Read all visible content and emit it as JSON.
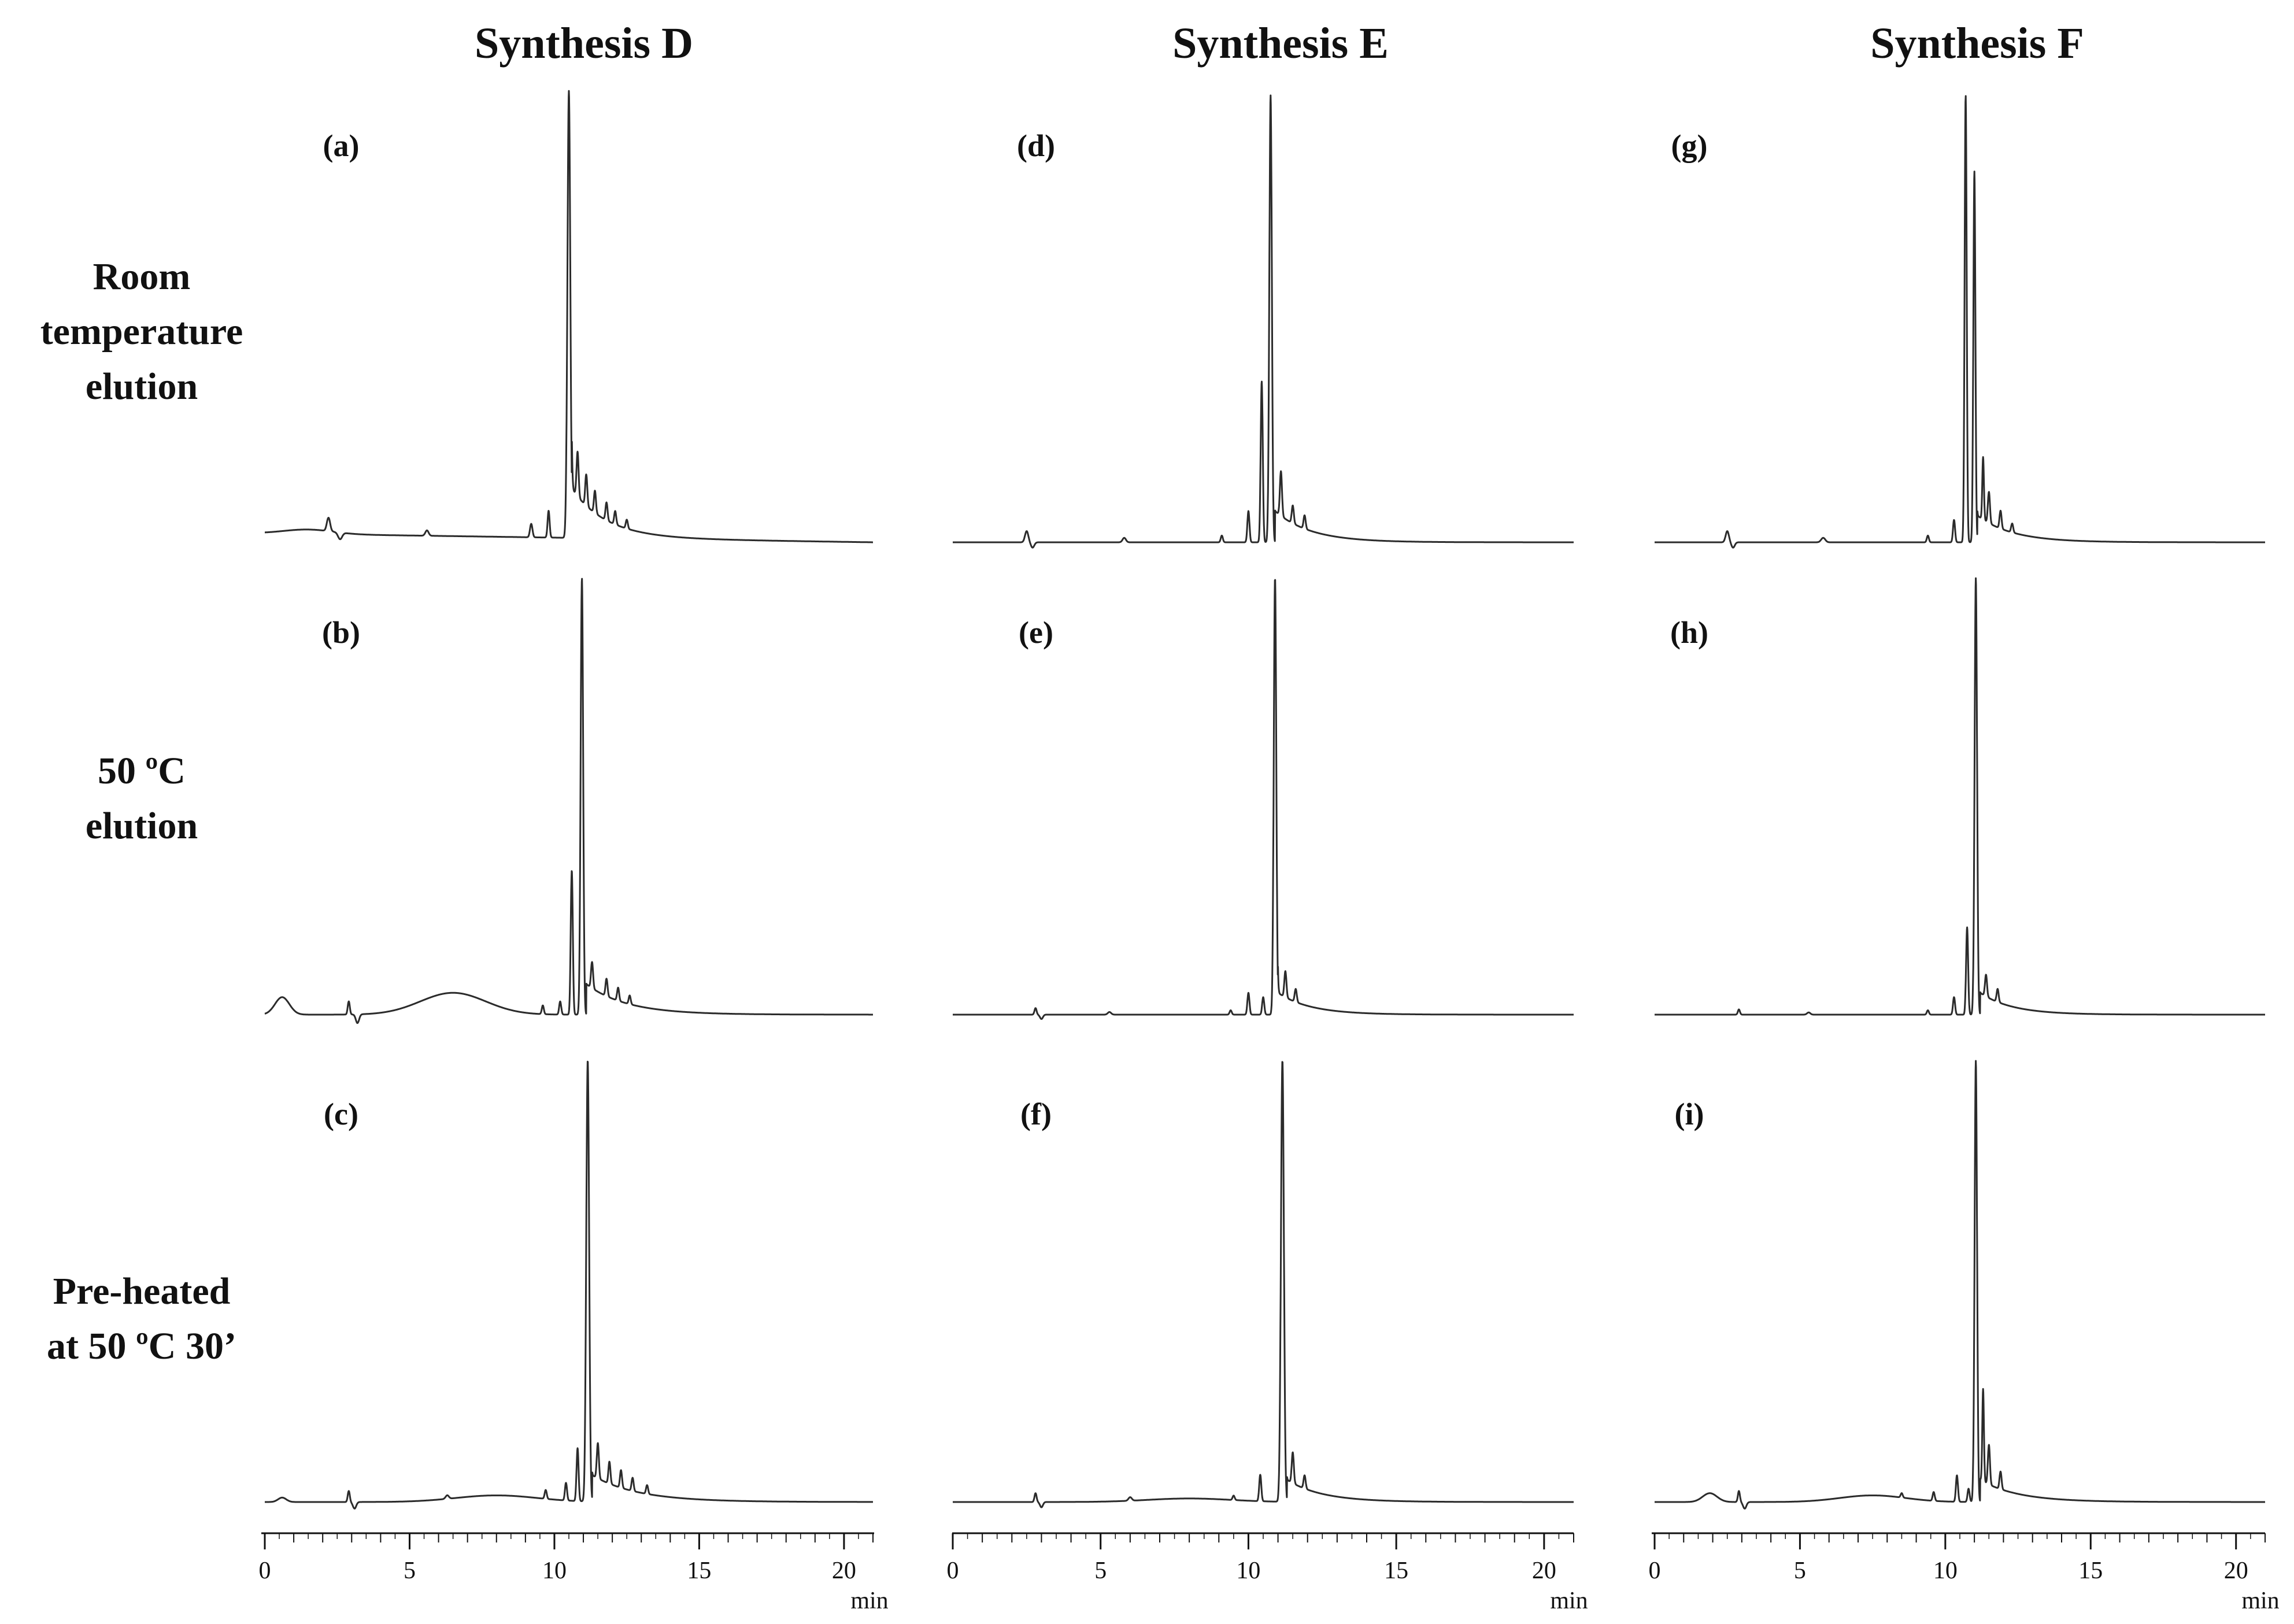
{
  "figure": {
    "column_titles": [
      "Synthesis D",
      "Synthesis E",
      "Synthesis F"
    ],
    "row_labels": [
      [
        "Room",
        "temperature",
        "elution"
      ],
      [
        "50 ºC",
        "elution"
      ],
      [
        "Pre-heated",
        "at 50 ºC 30’"
      ]
    ],
    "axis": {
      "tick_labels": [
        "0",
        "5",
        "10",
        "15",
        "20"
      ],
      "unit": "min"
    }
  },
  "colors": {
    "trace": "#2b2b2b",
    "axis": "#111111",
    "text": "#111111"
  },
  "chart_data": [
    {
      "type": "line",
      "panel_label": "(a)",
      "column": "Synthesis D",
      "row": "Room temperature elution",
      "xlim": [
        0,
        21
      ],
      "xlabel": "min",
      "baseline": 0.02,
      "baseline_end": 0.0,
      "drift": 0.0,
      "humps": [
        {
          "x": 1.5,
          "h": 0.01,
          "w": 1.2
        }
      ],
      "peaks": [
        {
          "x": 2.2,
          "h": 0.03,
          "w": 0.08
        },
        {
          "x": 2.6,
          "h": -0.015,
          "w": 0.1
        },
        {
          "x": 5.6,
          "h": 0.012,
          "w": 0.08
        },
        {
          "x": 9.2,
          "h": 0.03,
          "w": 0.06
        },
        {
          "x": 9.8,
          "h": 0.06,
          "w": 0.05
        },
        {
          "x": 10.5,
          "h": 1.0,
          "w": 0.07
        },
        {
          "x": 10.8,
          "h": 0.1,
          "w": 0.05
        },
        {
          "x": 11.1,
          "h": 0.07,
          "w": 0.05
        },
        {
          "x": 11.4,
          "h": 0.05,
          "w": 0.05
        },
        {
          "x": 11.8,
          "h": 0.04,
          "w": 0.05
        },
        {
          "x": 12.1,
          "h": 0.03,
          "w": 0.05
        },
        {
          "x": 12.5,
          "h": 0.02,
          "w": 0.05
        }
      ],
      "tail": {
        "x0": 10.6,
        "h": 0.11,
        "decay": 1.2
      }
    },
    {
      "type": "line",
      "panel_label": "(b)",
      "column": "Synthesis D",
      "row": "50 ºC elution",
      "xlim": [
        0,
        21
      ],
      "xlabel": "min",
      "baseline": 0.0,
      "baseline_end": 0.0,
      "drift": 0.0,
      "humps": [
        {
          "x": 0.6,
          "h": 0.04,
          "w": 0.35
        },
        {
          "x": 6.5,
          "h": 0.05,
          "w": 1.6
        }
      ],
      "peaks": [
        {
          "x": 2.9,
          "h": 0.03,
          "w": 0.05
        },
        {
          "x": 3.2,
          "h": -0.02,
          "w": 0.08
        },
        {
          "x": 9.6,
          "h": 0.02,
          "w": 0.05
        },
        {
          "x": 10.2,
          "h": 0.03,
          "w": 0.05
        },
        {
          "x": 10.6,
          "h": 0.33,
          "w": 0.05
        },
        {
          "x": 10.95,
          "h": 1.0,
          "w": 0.06
        },
        {
          "x": 11.3,
          "h": 0.06,
          "w": 0.05
        },
        {
          "x": 11.8,
          "h": 0.04,
          "w": 0.05
        },
        {
          "x": 12.2,
          "h": 0.03,
          "w": 0.05
        },
        {
          "x": 12.6,
          "h": 0.02,
          "w": 0.05
        }
      ],
      "tail": {
        "x0": 11.1,
        "h": 0.07,
        "decay": 1.4
      }
    },
    {
      "type": "line",
      "panel_label": "(c)",
      "column": "Synthesis D",
      "row": "Pre-heated at 50 ºC 30’",
      "xlim": [
        0,
        21
      ],
      "xlabel": "min",
      "baseline": 0.0,
      "baseline_end": 0.0,
      "drift": 0.0,
      "humps": [
        {
          "x": 8.0,
          "h": 0.015,
          "w": 2.0
        }
      ],
      "peaks": [
        {
          "x": 0.6,
          "h": 0.01,
          "w": 0.2
        },
        {
          "x": 2.9,
          "h": 0.025,
          "w": 0.05
        },
        {
          "x": 3.1,
          "h": -0.015,
          "w": 0.08
        },
        {
          "x": 6.3,
          "h": 0.008,
          "w": 0.08
        },
        {
          "x": 9.7,
          "h": 0.02,
          "w": 0.05
        },
        {
          "x": 10.4,
          "h": 0.04,
          "w": 0.05
        },
        {
          "x": 10.8,
          "h": 0.12,
          "w": 0.05
        },
        {
          "x": 11.15,
          "h": 1.0,
          "w": 0.07
        },
        {
          "x": 11.5,
          "h": 0.08,
          "w": 0.05
        },
        {
          "x": 11.9,
          "h": 0.05,
          "w": 0.05
        },
        {
          "x": 12.3,
          "h": 0.04,
          "w": 0.05
        },
        {
          "x": 12.7,
          "h": 0.03,
          "w": 0.05
        },
        {
          "x": 13.2,
          "h": 0.02,
          "w": 0.05
        }
      ],
      "tail": {
        "x0": 11.3,
        "h": 0.06,
        "decay": 1.6
      }
    },
    {
      "type": "line",
      "panel_label": "(d)",
      "column": "Synthesis E",
      "row": "Room temperature elution",
      "xlim": [
        0,
        21
      ],
      "xlabel": "min",
      "baseline": 0.0,
      "baseline_end": 0.0,
      "drift": 0.0,
      "humps": [],
      "peaks": [
        {
          "x": 2.5,
          "h": 0.025,
          "w": 0.08
        },
        {
          "x": 2.7,
          "h": -0.012,
          "w": 0.08
        },
        {
          "x": 5.8,
          "h": 0.01,
          "w": 0.08
        },
        {
          "x": 9.1,
          "h": 0.015,
          "w": 0.05
        },
        {
          "x": 10.0,
          "h": 0.07,
          "w": 0.05
        },
        {
          "x": 10.45,
          "h": 0.36,
          "w": 0.05
        },
        {
          "x": 10.75,
          "h": 1.0,
          "w": 0.06
        },
        {
          "x": 11.1,
          "h": 0.1,
          "w": 0.05
        },
        {
          "x": 11.5,
          "h": 0.04,
          "w": 0.05
        },
        {
          "x": 11.9,
          "h": 0.03,
          "w": 0.05
        }
      ],
      "tail": {
        "x0": 10.9,
        "h": 0.07,
        "decay": 1.2
      }
    },
    {
      "type": "line",
      "panel_label": "(e)",
      "column": "Synthesis E",
      "row": "50 ºC elution",
      "xlim": [
        0,
        21
      ],
      "xlabel": "min",
      "baseline": 0.0,
      "baseline_end": 0.0,
      "drift": 0.0,
      "humps": [],
      "peaks": [
        {
          "x": 2.8,
          "h": 0.015,
          "w": 0.05
        },
        {
          "x": 3.0,
          "h": -0.01,
          "w": 0.07
        },
        {
          "x": 5.3,
          "h": 0.006,
          "w": 0.08
        },
        {
          "x": 9.4,
          "h": 0.01,
          "w": 0.05
        },
        {
          "x": 10.0,
          "h": 0.05,
          "w": 0.05
        },
        {
          "x": 10.5,
          "h": 0.04,
          "w": 0.05
        },
        {
          "x": 10.9,
          "h": 1.0,
          "w": 0.06
        },
        {
          "x": 11.25,
          "h": 0.06,
          "w": 0.05
        },
        {
          "x": 11.6,
          "h": 0.03,
          "w": 0.05
        }
      ],
      "tail": {
        "x0": 11.0,
        "h": 0.05,
        "decay": 1.1
      }
    },
    {
      "type": "line",
      "panel_label": "(f)",
      "column": "Synthesis E",
      "row": "Pre-heated at 50 ºC 30’",
      "xlim": [
        0,
        21
      ],
      "xlabel": "min",
      "baseline": 0.0,
      "baseline_end": 0.0,
      "drift": 0.0,
      "humps": [
        {
          "x": 8.0,
          "h": 0.008,
          "w": 2.0
        }
      ],
      "peaks": [
        {
          "x": 2.8,
          "h": 0.02,
          "w": 0.05
        },
        {
          "x": 3.0,
          "h": -0.012,
          "w": 0.07
        },
        {
          "x": 6.0,
          "h": 0.008,
          "w": 0.08
        },
        {
          "x": 9.5,
          "h": 0.01,
          "w": 0.05
        },
        {
          "x": 10.4,
          "h": 0.06,
          "w": 0.05
        },
        {
          "x": 11.15,
          "h": 1.0,
          "w": 0.07
        },
        {
          "x": 11.5,
          "h": 0.07,
          "w": 0.05
        },
        {
          "x": 11.9,
          "h": 0.03,
          "w": 0.05
        }
      ],
      "tail": {
        "x0": 11.3,
        "h": 0.05,
        "decay": 1.2
      }
    },
    {
      "type": "line",
      "panel_label": "(g)",
      "column": "Synthesis F",
      "row": "Room temperature elution",
      "xlim": [
        0,
        21
      ],
      "xlabel": "min",
      "baseline": 0.0,
      "baseline_end": 0.0,
      "drift": 0.0,
      "humps": [],
      "peaks": [
        {
          "x": 2.5,
          "h": 0.025,
          "w": 0.08
        },
        {
          "x": 2.7,
          "h": -0.012,
          "w": 0.08
        },
        {
          "x": 5.8,
          "h": 0.01,
          "w": 0.1
        },
        {
          "x": 9.4,
          "h": 0.015,
          "w": 0.05
        },
        {
          "x": 10.3,
          "h": 0.05,
          "w": 0.05
        },
        {
          "x": 10.7,
          "h": 1.0,
          "w": 0.05
        },
        {
          "x": 11.0,
          "h": 0.83,
          "w": 0.05
        },
        {
          "x": 11.3,
          "h": 0.14,
          "w": 0.04
        },
        {
          "x": 11.5,
          "h": 0.07,
          "w": 0.05
        },
        {
          "x": 11.9,
          "h": 0.04,
          "w": 0.05
        },
        {
          "x": 12.3,
          "h": 0.02,
          "w": 0.05
        }
      ],
      "tail": {
        "x0": 11.1,
        "h": 0.06,
        "decay": 1.2
      }
    },
    {
      "type": "line",
      "panel_label": "(h)",
      "column": "Synthesis F",
      "row": "50 ºC elution",
      "xlim": [
        0,
        21
      ],
      "xlabel": "min",
      "baseline": 0.0,
      "baseline_end": 0.0,
      "drift": 0.0,
      "humps": [],
      "peaks": [
        {
          "x": 2.9,
          "h": 0.012,
          "w": 0.05
        },
        {
          "x": 5.3,
          "h": 0.005,
          "w": 0.08
        },
        {
          "x": 9.4,
          "h": 0.01,
          "w": 0.05
        },
        {
          "x": 10.3,
          "h": 0.04,
          "w": 0.05
        },
        {
          "x": 10.75,
          "h": 0.2,
          "w": 0.05
        },
        {
          "x": 11.05,
          "h": 1.0,
          "w": 0.06
        },
        {
          "x": 11.4,
          "h": 0.05,
          "w": 0.05
        },
        {
          "x": 11.8,
          "h": 0.03,
          "w": 0.05
        }
      ],
      "tail": {
        "x0": 11.2,
        "h": 0.05,
        "decay": 1.1
      }
    },
    {
      "type": "line",
      "panel_label": "(i)",
      "column": "Synthesis F",
      "row": "Pre-heated at 50 ºC 30’",
      "xlim": [
        0,
        21
      ],
      "xlabel": "min",
      "baseline": 0.0,
      "baseline_end": 0.0,
      "drift": 0.0,
      "humps": [
        {
          "x": 1.9,
          "h": 0.02,
          "w": 0.35
        },
        {
          "x": 7.5,
          "h": 0.015,
          "w": 1.6
        }
      ],
      "peaks": [
        {
          "x": 2.9,
          "h": 0.025,
          "w": 0.05
        },
        {
          "x": 3.1,
          "h": -0.015,
          "w": 0.08
        },
        {
          "x": 8.5,
          "h": 0.01,
          "w": 0.05
        },
        {
          "x": 9.6,
          "h": 0.02,
          "w": 0.05
        },
        {
          "x": 10.4,
          "h": 0.06,
          "w": 0.05
        },
        {
          "x": 10.8,
          "h": 0.03,
          "w": 0.05
        },
        {
          "x": 11.05,
          "h": 1.0,
          "w": 0.06
        },
        {
          "x": 11.3,
          "h": 0.21,
          "w": 0.04
        },
        {
          "x": 11.5,
          "h": 0.09,
          "w": 0.05
        },
        {
          "x": 11.9,
          "h": 0.04,
          "w": 0.05
        }
      ],
      "tail": {
        "x0": 11.2,
        "h": 0.05,
        "decay": 1.3
      }
    }
  ]
}
